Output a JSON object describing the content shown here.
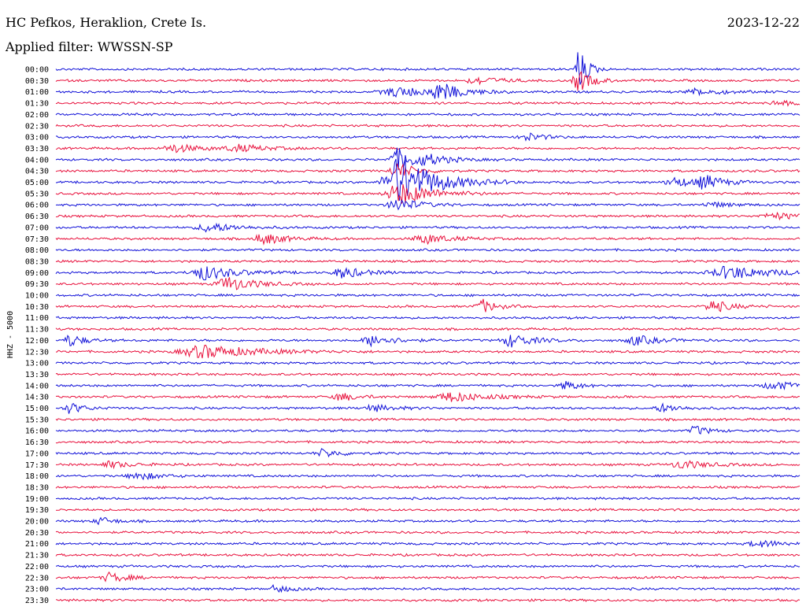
{
  "header": {
    "station": "HC Pefkos, Heraklion, Crete Is.",
    "date": "2023-12-22",
    "filter": "Applied filter: WWSSN-SP"
  },
  "colors": {
    "trace_a": "#1010d8",
    "trace_b": "#e8103c",
    "background": "#ffffff",
    "text": "#000000"
  },
  "chart_data": {
    "type": "line",
    "title": "HC Pefkos, Heraklion, Crete Is.",
    "ylabel": "HHZ - 5000",
    "row_labels": [
      "00:00",
      "00:30",
      "01:00",
      "01:30",
      "02:00",
      "02:30",
      "03:00",
      "03:30",
      "04:00",
      "04:30",
      "05:00",
      "05:30",
      "06:00",
      "06:30",
      "07:00",
      "07:30",
      "08:00",
      "08:30",
      "09:00",
      "09:30",
      "10:00",
      "10:30",
      "11:00",
      "11:30",
      "12:00",
      "12:30",
      "13:00",
      "13:30",
      "14:00",
      "14:30",
      "15:00",
      "15:30",
      "16:00",
      "16:30",
      "17:00",
      "17:30",
      "18:00",
      "18:30",
      "19:00",
      "19:30",
      "20:00",
      "20:30",
      "21:00",
      "21:30",
      "22:00",
      "22:30",
      "23:00",
      "23:30"
    ],
    "x_range_minutes": [
      0,
      30
    ],
    "events": [
      {
        "row": "00:00",
        "minute": 21.1,
        "amplitude": 28,
        "width": 0.4
      },
      {
        "row": "00:30",
        "minute": 17.0,
        "amplitude": 5,
        "width": 1.0
      },
      {
        "row": "00:30",
        "minute": 21.1,
        "amplitude": 14,
        "width": 0.6
      },
      {
        "row": "01:00",
        "minute": 13.8,
        "amplitude": 6,
        "width": 1.6
      },
      {
        "row": "01:00",
        "minute": 15.5,
        "amplitude": 10,
        "width": 1.0
      },
      {
        "row": "01:00",
        "minute": 25.9,
        "amplitude": 4,
        "width": 1.2
      },
      {
        "row": "01:30",
        "minute": 29.2,
        "amplitude": 3,
        "width": 1.0
      },
      {
        "row": "03:00",
        "minute": 19.0,
        "amplitude": 5,
        "width": 0.8
      },
      {
        "row": "03:30",
        "minute": 4.8,
        "amplitude": 5,
        "width": 1.2
      },
      {
        "row": "03:30",
        "minute": 7.4,
        "amplitude": 4,
        "width": 1.4
      },
      {
        "row": "04:00",
        "minute": 13.8,
        "amplitude": 14,
        "width": 0.8
      },
      {
        "row": "04:00",
        "minute": 15.0,
        "amplitude": 5,
        "width": 1.2
      },
      {
        "row": "04:30",
        "minute": 13.8,
        "amplitude": 10,
        "width": 0.8
      },
      {
        "row": "05:00",
        "minute": 13.9,
        "amplitude": 32,
        "width": 1.6
      },
      {
        "row": "05:00",
        "minute": 25.0,
        "amplitude": 6,
        "width": 1.0
      },
      {
        "row": "05:00",
        "minute": 26.2,
        "amplitude": 8,
        "width": 0.8
      },
      {
        "row": "05:30",
        "minute": 13.9,
        "amplitude": 14,
        "width": 1.4
      },
      {
        "row": "06:00",
        "minute": 13.8,
        "amplitude": 8,
        "width": 1.0
      },
      {
        "row": "06:00",
        "minute": 26.5,
        "amplitude": 3,
        "width": 1.0
      },
      {
        "row": "06:30",
        "minute": 29.0,
        "amplitude": 4,
        "width": 1.4
      },
      {
        "row": "07:00",
        "minute": 6.2,
        "amplitude": 6,
        "width": 1.2
      },
      {
        "row": "07:30",
        "minute": 8.4,
        "amplitude": 7,
        "width": 1.0
      },
      {
        "row": "07:30",
        "minute": 14.9,
        "amplitude": 6,
        "width": 1.2
      },
      {
        "row": "09:00",
        "minute": 6.0,
        "amplitude": 9,
        "width": 1.4
      },
      {
        "row": "09:00",
        "minute": 11.6,
        "amplitude": 7,
        "width": 1.0
      },
      {
        "row": "09:00",
        "minute": 27.2,
        "amplitude": 8,
        "width": 2.0
      },
      {
        "row": "09:30",
        "minute": 7.0,
        "amplitude": 9,
        "width": 1.2
      },
      {
        "row": "10:30",
        "minute": 17.2,
        "amplitude": 9,
        "width": 0.6
      },
      {
        "row": "10:30",
        "minute": 26.5,
        "amplitude": 8,
        "width": 0.8
      },
      {
        "row": "12:00",
        "minute": 0.6,
        "amplitude": 8,
        "width": 0.6
      },
      {
        "row": "12:00",
        "minute": 12.8,
        "amplitude": 7,
        "width": 1.0
      },
      {
        "row": "12:00",
        "minute": 18.4,
        "amplitude": 8,
        "width": 1.0
      },
      {
        "row": "12:00",
        "minute": 23.4,
        "amplitude": 6,
        "width": 1.0
      },
      {
        "row": "12:30",
        "minute": 6.0,
        "amplitude": 8,
        "width": 2.4
      },
      {
        "row": "14:00",
        "minute": 20.6,
        "amplitude": 6,
        "width": 0.6
      },
      {
        "row": "14:00",
        "minute": 29.0,
        "amplitude": 5,
        "width": 1.2
      },
      {
        "row": "14:30",
        "minute": 11.5,
        "amplitude": 5,
        "width": 0.8
      },
      {
        "row": "14:30",
        "minute": 16.0,
        "amplitude": 6,
        "width": 1.6
      },
      {
        "row": "15:00",
        "minute": 0.6,
        "amplitude": 7,
        "width": 0.6
      },
      {
        "row": "15:00",
        "minute": 12.8,
        "amplitude": 4,
        "width": 1.0
      },
      {
        "row": "15:00",
        "minute": 24.5,
        "amplitude": 5,
        "width": 0.8
      },
      {
        "row": "16:00",
        "minute": 25.8,
        "amplitude": 6,
        "width": 0.6
      },
      {
        "row": "17:00",
        "minute": 10.8,
        "amplitude": 5,
        "width": 0.8
      },
      {
        "row": "17:30",
        "minute": 2.2,
        "amplitude": 4,
        "width": 1.0
      },
      {
        "row": "17:30",
        "minute": 25.3,
        "amplitude": 5,
        "width": 1.2
      },
      {
        "row": "18:00",
        "minute": 3.3,
        "amplitude": 5,
        "width": 1.0
      },
      {
        "row": "20:00",
        "minute": 1.8,
        "amplitude": 5,
        "width": 0.6
      },
      {
        "row": "21:00",
        "minute": 28.4,
        "amplitude": 4,
        "width": 1.2
      },
      {
        "row": "22:30",
        "minute": 2.2,
        "amplitude": 6,
        "width": 0.8
      },
      {
        "row": "23:00",
        "minute": 8.9,
        "amplitude": 5,
        "width": 0.6
      }
    ]
  }
}
